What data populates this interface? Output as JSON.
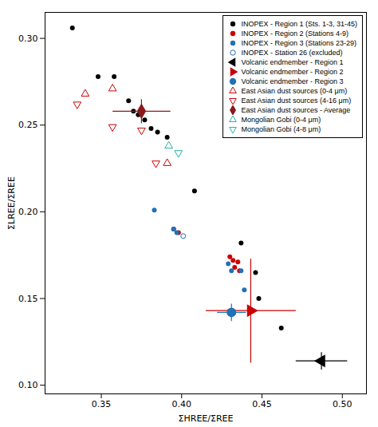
{
  "chart_data": {
    "type": "scatter",
    "xlabel": "ΣHREE/ΣREE",
    "ylabel": "ΣLREE/ΣREE",
    "xlim": [
      0.315,
      0.515
    ],
    "ylim": [
      0.095,
      0.315
    ],
    "xticks": [
      0.35,
      {
        "value": 0.4,
        "label": "0.40"
      },
      0.45,
      {
        "value": 0.5,
        "label": "0.50"
      }
    ],
    "yticks": [
      {
        "value": 0.1,
        "label": "0.10"
      },
      0.15,
      {
        "value": 0.2,
        "label": "0.20"
      },
      0.25,
      {
        "value": 0.3,
        "label": "0.30"
      }
    ],
    "legend": "upper right",
    "series": [
      {
        "name": "INOPEX - Region 1 (Sts. 1-3, 31-45)",
        "color": "#000000",
        "marker": "circle",
        "x": [
          0.332,
          0.348,
          0.358,
          0.367,
          0.37,
          0.373,
          0.377,
          0.381,
          0.385,
          0.391,
          0.408,
          0.437,
          0.446,
          0.448,
          0.462
        ],
        "values": [
          0.306,
          0.278,
          0.278,
          0.264,
          0.258,
          0.256,
          0.253,
          0.248,
          0.246,
          0.243,
          0.212,
          0.182,
          0.165,
          0.15,
          0.133
        ]
      },
      {
        "name": "INOPEX - Region 2 (Stations 4-9)",
        "color": "#cc0000",
        "marker": "circle",
        "x": [
          0.395,
          0.398,
          0.43,
          0.432,
          0.433,
          0.435,
          0.436
        ],
        "values": [
          0.19,
          0.188,
          0.174,
          0.172,
          0.168,
          0.171,
          0.166
        ]
      },
      {
        "name": "INOPEX - Region 3 (Stations 23-29)",
        "color": "#2171b5",
        "marker": "circle",
        "x": [
          0.383,
          0.395,
          0.397,
          0.429,
          0.431,
          0.437,
          0.439
        ],
        "values": [
          0.201,
          0.19,
          0.188,
          0.17,
          0.166,
          0.166,
          0.155
        ]
      },
      {
        "name": "INOPEX - Station 26 (excluded)",
        "color": "#2171b5",
        "marker": "open_circle",
        "x": [
          0.401
        ],
        "values": [
          0.186
        ]
      },
      {
        "name": "Volcanic endmember - Region 1",
        "color": "#000000",
        "marker": "triangle_left",
        "x": [
          0.487
        ],
        "values": [
          0.114
        ],
        "xerr": [
          0.016
        ],
        "yerr": [
          0.005
        ]
      },
      {
        "name": "Volcanic endmember - Region 2",
        "color": "#cc0000",
        "marker": "triangle_right",
        "x": [
          0.443
        ],
        "values": [
          0.143
        ],
        "xerr": [
          0.028
        ],
        "yerr": [
          0.03
        ]
      },
      {
        "name": "Volcanic endmember - Region 3",
        "color": "#2171b5",
        "marker": "circle",
        "x": [
          0.431
        ],
        "values": [
          0.142
        ],
        "xerr": [
          0.009
        ],
        "yerr": [
          0.005
        ]
      },
      {
        "name": "East Asian dust sources (0-4 μm)",
        "color": "#cc0000",
        "marker": "open_triangle_up",
        "x": [
          0.34,
          0.357,
          0.391
        ],
        "values": [
          0.268,
          0.271,
          0.228
        ]
      },
      {
        "name": "East Asian dust sources (4-16 μm)",
        "color": "#cc0000",
        "marker": "open_triangle_down",
        "x": [
          0.335,
          0.357,
          0.375,
          0.384
        ],
        "values": [
          0.262,
          0.249,
          0.247,
          0.228
        ]
      },
      {
        "name": "East Asian dust sources - Average",
        "color": "#8b1a1a",
        "marker": "diamond",
        "x": [
          0.375
        ],
        "values": [
          0.258
        ],
        "xerr": [
          0.018
        ],
        "yerr": [
          0.007
        ]
      },
      {
        "name": "Mongolian Gobi (0-4 μm)",
        "color": "#20b2aa",
        "marker": "open_triangle_up",
        "x": [
          0.392
        ],
        "values": [
          0.238
        ]
      },
      {
        "name": "Mongolian Gobi (4-8 μm)",
        "color": "#20b2aa",
        "marker": "open_triangle_down",
        "x": [
          0.398
        ],
        "values": [
          0.234
        ]
      }
    ]
  }
}
